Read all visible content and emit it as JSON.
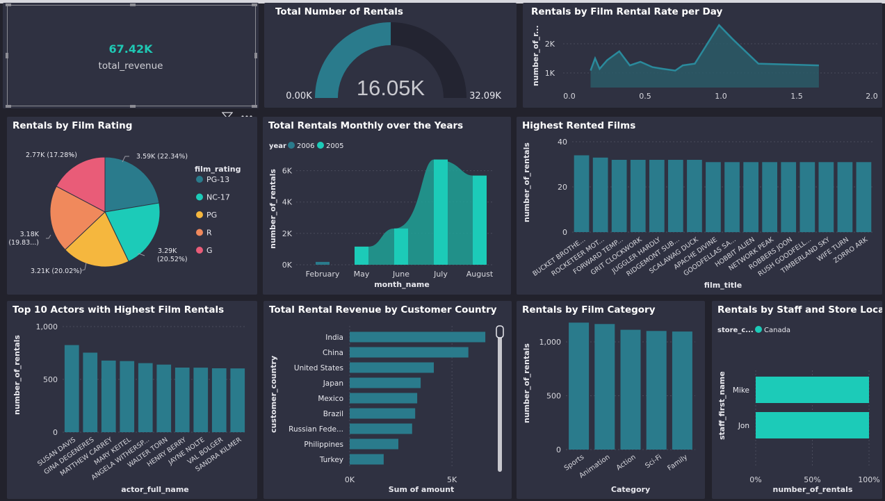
{
  "colors": {
    "background": "#22222c",
    "card": "#2f3141",
    "teal_dark": "#2a7b8c",
    "teal_bright": "#1ccbb8",
    "kpi_value": "#1fc8b4",
    "pie": [
      "#2a7b8c",
      "#1ccbb8",
      "#f5b73e",
      "#f0895c",
      "#e95c78"
    ]
  },
  "kpi": {
    "value": "67.42K",
    "label": "total_revenue"
  },
  "visual_tools": {
    "filter_icon": "filter-icon",
    "more_icon": "more-options-icon"
  },
  "gauge": {
    "title": "Total Number of Rentals",
    "value_label": "16.05K",
    "min_label": "0.00K",
    "max_label": "32.09K",
    "value": 16.05,
    "max": 32.09
  },
  "rate_chart": {
    "title": "Rentals by Film Rental Rate per Day",
    "ylabel": "number_of_r...",
    "y_ticks": [
      "2K",
      "1K"
    ],
    "x_ticks": [
      "0.0",
      "0.5",
      "1.0",
      "1.5",
      "2.0"
    ]
  },
  "rating_chart": {
    "title": "Rentals by Film Rating",
    "legend_title": "film_rating",
    "labels": [
      "3.59K (22.34%)",
      "3.29K",
      "(20.52%)",
      "3.21K (20.02%)",
      "3.18K",
      "(19.83...)",
      "2.77K (17.28%)"
    ]
  },
  "monthly_chart": {
    "title": "Total Rentals Monthly over the Years",
    "legend_title": "year",
    "xlabel": "month_name",
    "ylabel": "number_of_rentals",
    "y_ticks": [
      "6K",
      "4K",
      "2K",
      "0K"
    ],
    "x_ticks": [
      "February",
      "May",
      "June",
      "July",
      "August"
    ]
  },
  "films_chart": {
    "title": "Highest Rented Films",
    "xlabel": "film_title",
    "ylabel": "number_of_rentals",
    "y_ticks": [
      "40",
      "20",
      "0"
    ]
  },
  "actors_chart": {
    "title": "Top 10 Actors with Highest Film Rentals",
    "xlabel": "actor_full_name",
    "ylabel": "number_of_rentals",
    "y_ticks": [
      "1,000",
      "500",
      "0"
    ]
  },
  "country_chart": {
    "title": "Total Rental Revenue by Customer Country",
    "xlabel": "Sum of amount",
    "ylabel": "customer_country",
    "x_ticks": [
      "0K",
      "5K"
    ]
  },
  "category_chart": {
    "title": "Rentals by Film Category",
    "xlabel": "Category",
    "ylabel": "number_of_rentals",
    "y_ticks": [
      "1,000",
      "500",
      "0"
    ]
  },
  "staff_chart": {
    "title": "Rentals by Staff and Store Location",
    "legend_title": "store_c...",
    "xlabel": "number_of_rentals",
    "ylabel": "staff_first_name",
    "x_ticks": [
      "0%",
      "50%",
      "100%"
    ]
  },
  "chart_data": [
    {
      "id": "gauge",
      "type": "gauge",
      "title": "Total Number of Rentals",
      "value": 16.05,
      "min": 0,
      "max": 32.09,
      "unit": "K"
    },
    {
      "id": "rate",
      "type": "area",
      "title": "Rentals by Film Rental Rate per Day",
      "ylabel": "number_of_r...",
      "xlim": [
        0,
        2.0
      ],
      "ylim": [
        0,
        2500
      ],
      "x": [
        0.14,
        0.17,
        0.2,
        0.25,
        0.33,
        0.4,
        0.47,
        0.55,
        0.62,
        0.7,
        0.75,
        0.83,
        0.99,
        1.08,
        1.25,
        1.65
      ],
      "y": [
        900,
        1250,
        950,
        1200,
        1450,
        1050,
        1150,
        1000,
        950,
        900,
        1050,
        1100,
        2200,
        1800,
        1100,
        1050
      ]
    },
    {
      "id": "rating",
      "type": "pie",
      "title": "Rentals by Film Rating",
      "legend_title": "film_rating",
      "categories": [
        "PG-13",
        "NC-17",
        "PG",
        "R",
        "G"
      ],
      "values": [
        3590,
        3290,
        3210,
        3180,
        2770
      ],
      "percents": [
        22.34,
        20.52,
        20.02,
        19.83,
        17.28
      ]
    },
    {
      "id": "monthly",
      "type": "bar",
      "title": "Total Rentals Monthly over the Years",
      "legend_title": "year",
      "xlabel": "month_name",
      "ylabel": "number_of_rentals",
      "ylim": [
        0,
        7000
      ],
      "categories": [
        "February",
        "May",
        "June",
        "July",
        "August"
      ],
      "series": [
        {
          "name": "2006",
          "values": [
            182,
            0,
            0,
            0,
            0
          ]
        },
        {
          "name": "2005",
          "values": [
            0,
            1156,
            2311,
            6709,
            5686
          ]
        }
      ]
    },
    {
      "id": "films",
      "type": "bar",
      "title": "Highest Rented Films",
      "xlabel": "film_title",
      "ylabel": "number_of_rentals",
      "ylim": [
        0,
        40
      ],
      "categories": [
        "BUCKET BROTHE...",
        "ROCKETEER MOT...",
        "FORWARD TEMP...",
        "GRIT CLOCKWORK",
        "JUGGLER HARDLY",
        "RIDGEMONT SUB...",
        "SCALAWAG DUCK",
        "APACHE DIVINE",
        "GOODFELLAS SA...",
        "HOBBIT ALIEN",
        "NETWORK PEAK",
        "ROBBERS JOON",
        "RUSH GOODFELL...",
        "TIMBERLAND SKY",
        "WIFE TURN",
        "ZORRO ARK"
      ],
      "values": [
        34,
        33,
        32,
        32,
        32,
        32,
        32,
        31,
        31,
        31,
        31,
        31,
        31,
        31,
        31,
        31
      ]
    },
    {
      "id": "actors",
      "type": "bar",
      "title": "Top 10 Actors with Highest Film Rentals",
      "xlabel": "actor_full_name",
      "ylabel": "number_of_rentals",
      "ylim": [
        0,
        1000
      ],
      "categories": [
        "SUSAN DAVIS",
        "GINA DEGENERES",
        "MATTHEW CARREY",
        "MARY KEITEL",
        "ANGELA WITHERSP...",
        "WALTER TORN",
        "HENRY BERRY",
        "JAYNE NOLTE",
        "VAL BOLGER",
        "SANDRA KILMER"
      ],
      "values": [
        825,
        753,
        678,
        674,
        654,
        640,
        612,
        611,
        605,
        604
      ]
    },
    {
      "id": "country",
      "type": "bar",
      "orientation": "horizontal",
      "title": "Total Rental Revenue by Customer Country",
      "xlabel": "Sum of amount",
      "ylabel": "customer_country",
      "xlim": [
        0,
        7000
      ],
      "categories": [
        "India",
        "China",
        "United States",
        "Japan",
        "Mexico",
        "Brazil",
        "Russian Fede...",
        "Philippines",
        "Turkey"
      ],
      "values": [
        6630,
        5800,
        4110,
        3470,
        3300,
        3200,
        3050,
        2380,
        1660
      ]
    },
    {
      "id": "category",
      "type": "bar",
      "title": "Rentals by Film Category",
      "xlabel": "Category",
      "ylabel": "number_of_rentals",
      "ylim": [
        0,
        1200
      ],
      "categories": [
        "Sports",
        "Animation",
        "Action",
        "Sci-Fi",
        "Family"
      ],
      "values": [
        1179,
        1166,
        1112,
        1101,
        1096
      ]
    },
    {
      "id": "staff",
      "type": "bar",
      "orientation": "horizontal",
      "stacked_percent": true,
      "title": "Rentals by Staff and Store Location",
      "legend_title": "store_c...",
      "xlabel": "number_of_rentals",
      "ylabel": "staff_first_name",
      "categories": [
        "Mike",
        "Jon"
      ],
      "series": [
        {
          "name": "Canada",
          "values": [
            100,
            100
          ]
        }
      ]
    }
  ]
}
